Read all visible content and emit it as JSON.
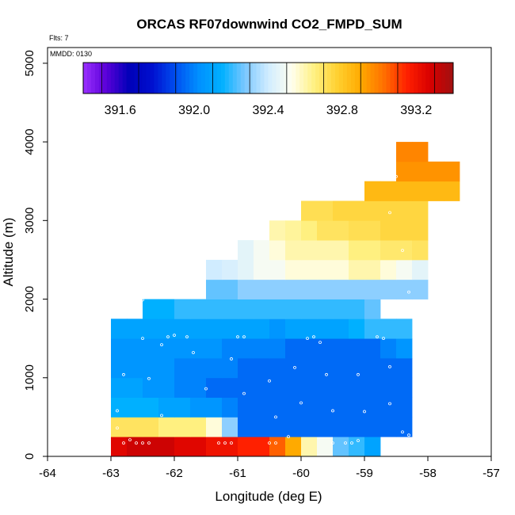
{
  "chart_data": {
    "type": "heatmap",
    "title": "ORCAS RF07downwind CO2_FMPD_SUM",
    "flights_label": "Flts: 7",
    "date_label": "MMDD: 0130",
    "xlabel": "Longitude (deg E)",
    "ylabel": "Altitude (m)",
    "xlim": [
      -64,
      -57
    ],
    "ylim": [
      0,
      5200
    ],
    "x_ticks": [
      -64,
      -63,
      -62,
      -61,
      -60,
      -59,
      -58,
      -57
    ],
    "y_ticks": [
      0,
      1000,
      2000,
      3000,
      4000,
      5000
    ],
    "cell_width_deg": 0.25,
    "cell_height_m": 250,
    "colorbar": {
      "min": 391.4,
      "max": 393.4,
      "ticks": [
        391.6,
        392.0,
        392.4,
        392.8,
        393.2
      ],
      "colors": [
        "#9b30ff",
        "#5a00d8",
        "#0000b8",
        "#0010d0",
        "#0050f0",
        "#0090ff",
        "#00b0ff",
        "#7cc8ff",
        "#d0ecff",
        "#fffff0",
        "#fff080",
        "#ffd030",
        "#ffaa00",
        "#ff7000",
        "#ff2000",
        "#d80000",
        "#a01010"
      ]
    },
    "rows": [
      {
        "alt": 0,
        "x0": -63.0,
        "values": [
          393.25,
          393.3,
          393.3,
          393.3,
          393.25,
          393.25,
          393.2,
          393.2,
          393.15,
          393.15,
          393.05,
          392.9,
          392.6,
          392.5,
          392.25,
          392.2,
          392.1
        ]
      },
      {
        "alt": 250,
        "x0": -63.0,
        "values": [
          392.7,
          392.7,
          392.7,
          392.65,
          392.65,
          392.65,
          392.55,
          392.3,
          391.95,
          391.95,
          391.95,
          391.95,
          391.95,
          391.95,
          391.95,
          391.95,
          391.95,
          391.95,
          391.95
        ]
      },
      {
        "alt": 500,
        "x0": -63.0,
        "values": [
          392.15,
          392.15,
          392.15,
          392.1,
          392.1,
          392.05,
          392.05,
          392.0,
          391.95,
          391.95,
          391.95,
          391.95,
          391.95,
          391.95,
          391.95,
          391.95,
          391.95,
          391.95,
          391.95
        ]
      },
      {
        "alt": 750,
        "x0": -63.0,
        "values": [
          392.1,
          392.1,
          392.05,
          392.05,
          392.0,
          392.0,
          391.95,
          391.95,
          391.95,
          391.95,
          391.95,
          391.95,
          391.95,
          391.95,
          391.95,
          391.95,
          391.95,
          391.95,
          391.95
        ]
      },
      {
        "alt": 1000,
        "x0": -63.0,
        "values": [
          392.05,
          392.05,
          392.05,
          392.05,
          392.0,
          392.0,
          392.0,
          392.0,
          391.95,
          391.95,
          391.95,
          391.95,
          391.95,
          391.95,
          391.95,
          391.95,
          391.95,
          391.95,
          391.95
        ]
      },
      {
        "alt": 1250,
        "x0": -63.0,
        "values": [
          392.05,
          392.05,
          392.05,
          392.05,
          392.05,
          392.05,
          392.05,
          392.0,
          392.0,
          392.0,
          392.0,
          391.95,
          391.95,
          391.95,
          391.95,
          391.95,
          391.95,
          392.0,
          392.05
        ]
      },
      {
        "alt": 1500,
        "x0": -63.0,
        "values": [
          392.1,
          392.1,
          392.1,
          392.1,
          392.1,
          392.1,
          392.1,
          392.1,
          392.1,
          392.1,
          392.05,
          392.1,
          392.1,
          392.1,
          392.1,
          392.15,
          392.2,
          392.2,
          392.2
        ]
      },
      {
        "alt": 1750,
        "x0": -62.5,
        "values": [
          392.15,
          392.15,
          392.2,
          392.2,
          392.2,
          392.2,
          392.2,
          392.2,
          392.2,
          392.2,
          392.2,
          392.2,
          392.2,
          392.2,
          392.25
        ]
      },
      {
        "alt": 2000,
        "x0": -61.5,
        "values": [
          392.25,
          392.25,
          392.3,
          392.3,
          392.3,
          392.3,
          392.3,
          392.3,
          392.3,
          392.3,
          392.3,
          392.3,
          392.3,
          392.3
        ]
      },
      {
        "alt": 2250,
        "x0": -61.5,
        "values": [
          392.4,
          392.42,
          392.45,
          392.5,
          392.5,
          392.55,
          392.55,
          392.55,
          392.55,
          392.6,
          392.6,
          392.55,
          392.5,
          392.45
        ]
      },
      {
        "alt": 2500,
        "x0": -61.0,
        "values": [
          392.45,
          392.5,
          392.55,
          392.6,
          392.6,
          392.6,
          392.6,
          392.65,
          392.65,
          392.68,
          392.68,
          392.7
        ]
      },
      {
        "alt": 2750,
        "x0": -60.5,
        "values": [
          392.6,
          392.62,
          392.65,
          392.7,
          392.7,
          392.72,
          392.72,
          392.75,
          392.75,
          392.75
        ]
      },
      {
        "alt": 3000,
        "x0": -60.0,
        "values": [
          392.72,
          392.72,
          392.75,
          392.75,
          392.75,
          392.75,
          392.75,
          392.75
        ]
      },
      {
        "alt": 3250,
        "x0": -59.0,
        "values": [
          392.85,
          392.85,
          392.85,
          392.85,
          392.85,
          392.85
        ]
      },
      {
        "alt": 3500,
        "x0": -58.5,
        "values": [
          392.95,
          392.95,
          392.95,
          392.95
        ]
      },
      {
        "alt": 3750,
        "x0": -58.5,
        "values": [
          392.98,
          392.98
        ]
      }
    ],
    "flight_points": [
      [
        -62.5,
        1990
      ],
      [
        -62.5,
        1500
      ],
      [
        -62.1,
        1520
      ],
      [
        -62.0,
        1540
      ],
      [
        -61.8,
        1520
      ],
      [
        -61.7,
        1320
      ],
      [
        -62.2,
        1420
      ],
      [
        -62.4,
        990
      ],
      [
        -62.2,
        520
      ],
      [
        -62.8,
        1040
      ],
      [
        -62.9,
        580
      ],
      [
        -62.9,
        360
      ],
      [
        -62.7,
        210
      ],
      [
        -62.6,
        170
      ],
      [
        -62.5,
        170
      ],
      [
        -62.4,
        170
      ],
      [
        -62.8,
        170
      ],
      [
        -61.3,
        170
      ],
      [
        -61.2,
        170
      ],
      [
        -61.1,
        170
      ],
      [
        -60.5,
        170
      ],
      [
        -60.4,
        170
      ],
      [
        -60.2,
        250
      ],
      [
        -59.5,
        170
      ],
      [
        -59.3,
        170
      ],
      [
        -59.2,
        170
      ],
      [
        -59.1,
        200
      ],
      [
        -58.3,
        270
      ],
      [
        -58.2,
        300
      ],
      [
        -58.1,
        350
      ],
      [
        -58.4,
        310
      ],
      [
        -59.9,
        1500
      ],
      [
        -59.8,
        1520
      ],
      [
        -59.7,
        1450
      ],
      [
        -59.6,
        1040
      ],
      [
        -59.1,
        1040
      ],
      [
        -58.8,
        1520
      ],
      [
        -58.7,
        1500
      ],
      [
        -58.6,
        1140
      ],
      [
        -58.2,
        1680
      ],
      [
        -58.1,
        1210
      ],
      [
        -58.0,
        770
      ],
      [
        -61.0,
        1520
      ],
      [
        -60.9,
        1520
      ],
      [
        -61.1,
        1240
      ],
      [
        -60.5,
        960
      ],
      [
        -60.4,
        500
      ],
      [
        -60.0,
        680
      ],
      [
        -60.1,
        1130
      ],
      [
        -59.5,
        580
      ],
      [
        -59.0,
        570
      ],
      [
        -58.6,
        670
      ],
      [
        -61.5,
        860
      ],
      [
        -60.9,
        800
      ],
      [
        -58.6,
        3100
      ],
      [
        -58.5,
        3560
      ],
      [
        -58.4,
        2620
      ],
      [
        -58.3,
        2090
      ]
    ]
  }
}
